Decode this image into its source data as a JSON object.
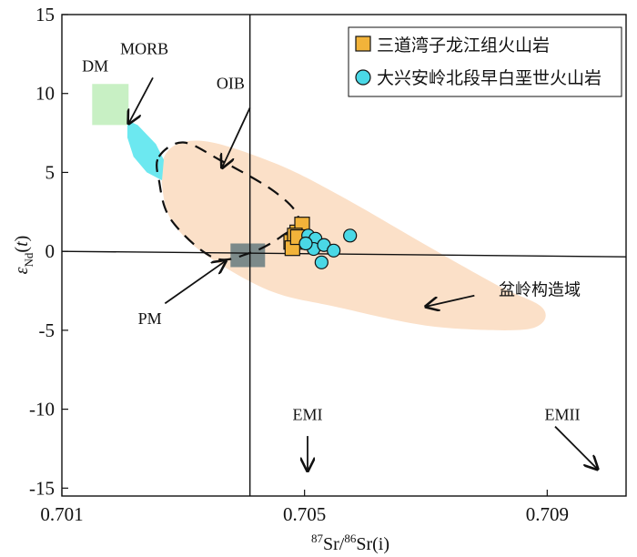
{
  "chart_data": {
    "type": "scatter",
    "xlabel": "87Sr/86Sr(i)",
    "ylabel": "εNd(t)",
    "xlim": [
      0.701,
      0.7103
    ],
    "ylim": [
      -15.5,
      15
    ],
    "x_ticks": [
      0.701,
      0.705,
      0.709
    ],
    "x_tick_labels": [
      "0.701",
      "0.705",
      "0.709"
    ],
    "y_ticks": [
      15,
      10,
      5,
      0,
      -5,
      -10,
      -15
    ],
    "y_tick_labels": [
      "15",
      "10",
      "5",
      "0",
      "-5",
      "-10",
      "-15"
    ],
    "reference_lines": {
      "x": 0.7041,
      "y": 0
    },
    "legend": {
      "placement": "top-right"
    },
    "series": [
      {
        "name": "三道湾子龙江组火山岩",
        "marker": "square",
        "color": "#f2b33a",
        "points": [
          {
            "x": 0.70478,
            "y": 0.6
          },
          {
            "x": 0.70488,
            "y": 1.2
          },
          {
            "x": 0.70496,
            "y": 1.7
          },
          {
            "x": 0.70484,
            "y": 1.0
          },
          {
            "x": 0.70492,
            "y": 0.6
          },
          {
            "x": 0.7048,
            "y": 0.2
          },
          {
            "x": 0.70489,
            "y": 0.9
          }
        ]
      },
      {
        "name": "大兴安岭北段早白垩世火山岩",
        "marker": "circle",
        "color": "#4ad8e6",
        "points": [
          {
            "x": 0.70506,
            "y": 1.0
          },
          {
            "x": 0.70518,
            "y": 0.8
          },
          {
            "x": 0.70515,
            "y": 0.15
          },
          {
            "x": 0.70502,
            "y": 0.5
          },
          {
            "x": 0.70532,
            "y": 0.4
          },
          {
            "x": 0.70548,
            "y": 0.05
          },
          {
            "x": 0.70528,
            "y": -0.7
          },
          {
            "x": 0.70575,
            "y": 1.0
          }
        ]
      }
    ],
    "regions": [
      {
        "name": "盆岭构造域",
        "color": "#fbe0c8",
        "polygon": [
          [
            0.7027,
            6.1
          ],
          [
            0.7033,
            7.0
          ],
          [
            0.7045,
            5.6
          ],
          [
            0.7056,
            3.5
          ],
          [
            0.707,
            0.4
          ],
          [
            0.7082,
            -2.2
          ],
          [
            0.7089,
            -3.5
          ],
          [
            0.7089,
            -4.6
          ],
          [
            0.7084,
            -5.0
          ],
          [
            0.707,
            -4.7
          ],
          [
            0.7055,
            -3.5
          ],
          [
            0.7045,
            -2.6
          ],
          [
            0.7036,
            -0.8
          ],
          [
            0.703,
            1.0
          ],
          [
            0.7027,
            3.0
          ]
        ]
      },
      {
        "name": "DM",
        "color": "#c8f0c4",
        "polygon": [
          [
            0.7015,
            10.6
          ],
          [
            0.7021,
            10.6
          ],
          [
            0.7021,
            8.0
          ],
          [
            0.7015,
            8.0
          ]
        ]
      },
      {
        "name": "MORB",
        "color": "#6ce8f0",
        "polygon": [
          [
            0.70208,
            8.3
          ],
          [
            0.70225,
            8.0
          ],
          [
            0.70255,
            6.8
          ],
          [
            0.70268,
            5.8
          ],
          [
            0.70265,
            4.5
          ],
          [
            0.7024,
            5.0
          ],
          [
            0.70218,
            6.0
          ],
          [
            0.70208,
            7.2
          ]
        ]
      },
      {
        "name": "PM",
        "color": "#7c8a8a",
        "polygon": [
          [
            0.70378,
            0.5
          ],
          [
            0.70435,
            0.5
          ],
          [
            0.70435,
            -1.0
          ],
          [
            0.70378,
            -1.0
          ]
        ]
      }
    ],
    "oib_outline": [
      [
        0.7026,
        6.0
      ],
      [
        0.703,
        6.9
      ],
      [
        0.7036,
        5.8
      ],
      [
        0.7045,
        3.8
      ],
      [
        0.7049,
        2.1
      ],
      [
        0.7046,
        0.9
      ],
      [
        0.7041,
        -0.1
      ],
      [
        0.7035,
        -0.4
      ],
      [
        0.7028,
        2.0
      ],
      [
        0.7026,
        4.5
      ]
    ],
    "annotations": [
      {
        "text": "DM",
        "x": 0.70155,
        "y": 11.4,
        "arrow": null
      },
      {
        "text": "MORB",
        "x": 0.70236,
        "y": 12.5,
        "arrow": {
          "from": [
            0.7025,
            11.0
          ],
          "to": [
            0.7021,
            8.1
          ]
        }
      },
      {
        "text": "OIB",
        "x": 0.70378,
        "y": 10.3,
        "arrow": {
          "from": [
            0.7041,
            9.1
          ],
          "to": [
            0.70364,
            5.3
          ]
        }
      },
      {
        "text": "PM",
        "x": 0.70245,
        "y": -4.6,
        "arrow": {
          "from": [
            0.7027,
            -3.3
          ],
          "to": [
            0.7037,
            -0.6
          ]
        }
      },
      {
        "text": "盆岭构造域",
        "x": 0.7082,
        "y": -2.8,
        "arrow": {
          "from": [
            0.7078,
            -2.8
          ],
          "to": [
            0.707,
            -3.5
          ]
        }
      },
      {
        "text": "EMI",
        "x": 0.70505,
        "y": -10.7,
        "arrow": {
          "from": [
            0.70505,
            -11.7
          ],
          "to": [
            0.70505,
            -13.9
          ]
        }
      },
      {
        "text": "EMII",
        "x": 0.70925,
        "y": -10.7,
        "arrow": {
          "from": [
            0.70913,
            -11.1
          ],
          "to": [
            0.70983,
            -13.8
          ]
        }
      }
    ]
  }
}
